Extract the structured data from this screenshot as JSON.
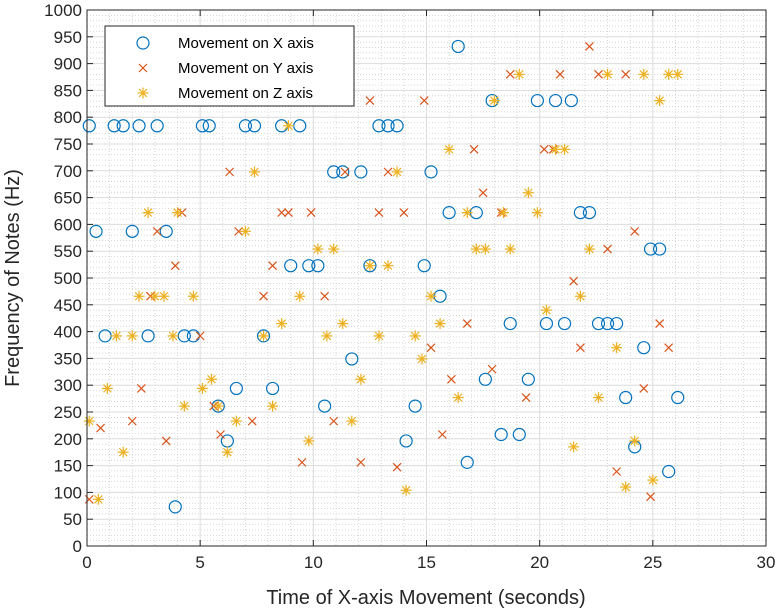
{
  "chart_data": {
    "type": "scatter",
    "title": "",
    "xlabel": "Time of X-axis Movement (seconds)",
    "ylabel": "Frequency of Notes (Hz)",
    "xlim": [
      0,
      30
    ],
    "ylim": [
      0,
      1000
    ],
    "x_ticks": [
      "0",
      "5",
      "10",
      "15",
      "20",
      "25",
      "30"
    ],
    "y_ticks": [
      "0",
      "50",
      "100",
      "150",
      "200",
      "250",
      "300",
      "350",
      "400",
      "450",
      "500",
      "550",
      "600",
      "650",
      "700",
      "750",
      "800",
      "850",
      "900",
      "950",
      "1000"
    ],
    "grid": true,
    "minor_grid": true,
    "legend_position": "top-left",
    "series": [
      {
        "name": "Movement on X axis",
        "marker": "circle",
        "color": "#0072BD",
        "points": [
          [
            0.1,
            784
          ],
          [
            0.4,
            587
          ],
          [
            0.8,
            392
          ],
          [
            1.2,
            784
          ],
          [
            1.6,
            784
          ],
          [
            2.0,
            587
          ],
          [
            2.3,
            784
          ],
          [
            2.7,
            392
          ],
          [
            3.1,
            784
          ],
          [
            3.5,
            587
          ],
          [
            3.9,
            73
          ],
          [
            4.3,
            392
          ],
          [
            4.7,
            392
          ],
          [
            5.1,
            784
          ],
          [
            5.4,
            784
          ],
          [
            5.8,
            261
          ],
          [
            6.2,
            196
          ],
          [
            6.6,
            294
          ],
          [
            7.0,
            784
          ],
          [
            7.4,
            784
          ],
          [
            7.8,
            392
          ],
          [
            8.2,
            294
          ],
          [
            8.6,
            784
          ],
          [
            9.0,
            523
          ],
          [
            9.4,
            784
          ],
          [
            9.8,
            523
          ],
          [
            10.2,
            523
          ],
          [
            10.5,
            261
          ],
          [
            10.9,
            698
          ],
          [
            11.3,
            698
          ],
          [
            11.7,
            349
          ],
          [
            12.1,
            698
          ],
          [
            12.5,
            523
          ],
          [
            12.9,
            784
          ],
          [
            13.3,
            784
          ],
          [
            13.7,
            784
          ],
          [
            14.1,
            196
          ],
          [
            14.5,
            261
          ],
          [
            14.9,
            523
          ],
          [
            15.2,
            698
          ],
          [
            15.6,
            466
          ],
          [
            16.0,
            622
          ],
          [
            16.4,
            932
          ],
          [
            16.8,
            156
          ],
          [
            17.2,
            622
          ],
          [
            17.6,
            311
          ],
          [
            17.9,
            831
          ],
          [
            18.3,
            208
          ],
          [
            18.7,
            415
          ],
          [
            19.1,
            208
          ],
          [
            19.5,
            311
          ],
          [
            19.9,
            831
          ],
          [
            20.3,
            415
          ],
          [
            20.7,
            831
          ],
          [
            21.1,
            415
          ],
          [
            21.4,
            831
          ],
          [
            21.8,
            622
          ],
          [
            22.2,
            622
          ],
          [
            22.6,
            415
          ],
          [
            23.0,
            415
          ],
          [
            23.4,
            415
          ],
          [
            23.8,
            277
          ],
          [
            24.2,
            185
          ],
          [
            24.6,
            370
          ],
          [
            24.9,
            554
          ],
          [
            25.3,
            554
          ],
          [
            25.7,
            139
          ],
          [
            26.1,
            277
          ]
        ]
      },
      {
        "name": "Movement on Y axis",
        "marker": "x",
        "color": "#D95319",
        "points": [
          [
            0.1,
            87
          ],
          [
            0.6,
            220
          ],
          [
            2.0,
            233
          ],
          [
            2.4,
            294
          ],
          [
            2.8,
            466
          ],
          [
            3.1,
            587
          ],
          [
            3.5,
            196
          ],
          [
            3.9,
            523
          ],
          [
            4.2,
            622
          ],
          [
            5.0,
            392
          ],
          [
            5.6,
            261
          ],
          [
            5.9,
            208
          ],
          [
            6.3,
            698
          ],
          [
            6.7,
            587
          ],
          [
            7.3,
            233
          ],
          [
            7.8,
            466
          ],
          [
            8.2,
            523
          ],
          [
            8.6,
            622
          ],
          [
            8.9,
            622
          ],
          [
            9.5,
            156
          ],
          [
            9.9,
            622
          ],
          [
            10.5,
            466
          ],
          [
            10.9,
            233
          ],
          [
            11.4,
            698
          ],
          [
            12.1,
            156
          ],
          [
            12.5,
            831
          ],
          [
            12.9,
            622
          ],
          [
            13.3,
            698
          ],
          [
            13.7,
            147
          ],
          [
            14.0,
            622
          ],
          [
            14.9,
            831
          ],
          [
            15.2,
            370
          ],
          [
            15.7,
            208
          ],
          [
            16.1,
            311
          ],
          [
            16.8,
            415
          ],
          [
            17.1,
            740
          ],
          [
            17.5,
            659
          ],
          [
            17.9,
            330
          ],
          [
            18.3,
            622
          ],
          [
            18.7,
            880
          ],
          [
            19.4,
            277
          ],
          [
            20.2,
            740
          ],
          [
            20.6,
            740
          ],
          [
            20.9,
            880
          ],
          [
            21.5,
            494
          ],
          [
            21.8,
            370
          ],
          [
            22.2,
            932
          ],
          [
            22.6,
            880
          ],
          [
            23.0,
            554
          ],
          [
            23.4,
            139
          ],
          [
            23.8,
            880
          ],
          [
            24.2,
            587
          ],
          [
            24.6,
            294
          ],
          [
            24.9,
            92
          ],
          [
            25.3,
            415
          ],
          [
            25.7,
            370
          ]
        ]
      },
      {
        "name": "Movement on Z axis",
        "marker": "asterisk",
        "color": "#EDB120",
        "points": [
          [
            0.1,
            233
          ],
          [
            0.5,
            87
          ],
          [
            0.9,
            294
          ],
          [
            1.3,
            392
          ],
          [
            1.6,
            175
          ],
          [
            2.0,
            392
          ],
          [
            2.3,
            466
          ],
          [
            2.7,
            622
          ],
          [
            3.0,
            466
          ],
          [
            3.4,
            466
          ],
          [
            3.8,
            392
          ],
          [
            4.0,
            622
          ],
          [
            4.3,
            261
          ],
          [
            4.7,
            466
          ],
          [
            5.1,
            294
          ],
          [
            5.5,
            311
          ],
          [
            5.8,
            261
          ],
          [
            6.2,
            175
          ],
          [
            6.6,
            233
          ],
          [
            7.0,
            587
          ],
          [
            7.4,
            698
          ],
          [
            7.8,
            392
          ],
          [
            8.2,
            261
          ],
          [
            8.6,
            415
          ],
          [
            8.9,
            784
          ],
          [
            9.4,
            466
          ],
          [
            9.8,
            196
          ],
          [
            10.2,
            554
          ],
          [
            10.6,
            392
          ],
          [
            10.9,
            554
          ],
          [
            11.3,
            415
          ],
          [
            11.7,
            233
          ],
          [
            12.1,
            311
          ],
          [
            12.5,
            523
          ],
          [
            12.9,
            392
          ],
          [
            13.3,
            523
          ],
          [
            13.7,
            698
          ],
          [
            14.1,
            104
          ],
          [
            14.5,
            392
          ],
          [
            14.8,
            349
          ],
          [
            15.2,
            466
          ],
          [
            15.6,
            415
          ],
          [
            16.0,
            740
          ],
          [
            16.4,
            277
          ],
          [
            16.8,
            622
          ],
          [
            17.2,
            554
          ],
          [
            17.6,
            554
          ],
          [
            18.0,
            831
          ],
          [
            18.4,
            622
          ],
          [
            18.7,
            554
          ],
          [
            19.1,
            880
          ],
          [
            19.5,
            659
          ],
          [
            19.9,
            622
          ],
          [
            20.3,
            440
          ],
          [
            20.7,
            740
          ],
          [
            21.1,
            740
          ],
          [
            21.5,
            185
          ],
          [
            21.8,
            466
          ],
          [
            22.2,
            554
          ],
          [
            22.6,
            277
          ],
          [
            23.0,
            880
          ],
          [
            23.4,
            370
          ],
          [
            23.8,
            110
          ],
          [
            24.2,
            196
          ],
          [
            24.6,
            880
          ],
          [
            25.0,
            123
          ],
          [
            25.3,
            831
          ],
          [
            25.7,
            880
          ],
          [
            26.1,
            880
          ]
        ]
      }
    ]
  }
}
